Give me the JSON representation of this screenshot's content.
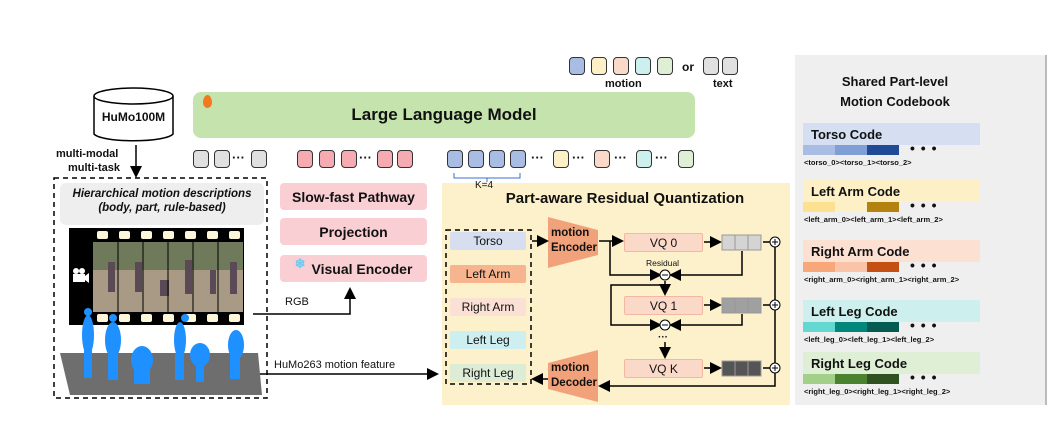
{
  "database": {
    "label": "HuMo100M",
    "arrow_label_1": "multi-modal",
    "arrow_label_2": "multi-task"
  },
  "data_panel": {
    "description_line_1": "Hierarchical motion descriptions",
    "description_line_2": "(body, part, rule-based)"
  },
  "llm": {
    "label": "Large Language Model",
    "trainable_icon": "flame-icon"
  },
  "legend": {
    "or_label": "or",
    "motion_label": "motion",
    "text_label": "text"
  },
  "token_row": {
    "k_label": "K=4",
    "dots": "···"
  },
  "visual_branch": {
    "slow_fast": "Slow-fast Pathway",
    "projection": "Projection",
    "visual_encoder": "Visual Encoder",
    "frozen_icon": "snowflake-icon",
    "rgb_label": "RGB",
    "motion_feature_label": "HuMo263 motion feature"
  },
  "prq": {
    "title": "Part-aware Residual Quantization",
    "parts": [
      "Torso",
      "Left Arm",
      "Right Arm",
      "Left Leg",
      "Right Leg"
    ],
    "encoder": [
      "motion",
      "Encoder"
    ],
    "decoder": [
      "motion",
      "Decoder"
    ],
    "vq": [
      "VQ 0",
      "VQ 1",
      "VQ K"
    ],
    "residual_label": "Residual",
    "vdots": "···"
  },
  "codebook": {
    "title_line_1": "Shared Part-level",
    "title_line_2": "Motion Codebook",
    "entries": [
      {
        "title": "Torso Code",
        "tokens": "<torso_0><torso_1><torso_2>",
        "bg": "#d5dff1",
        "colors": [
          "#a9bde4",
          "#7f9fd6",
          "#214a96"
        ]
      },
      {
        "title": "Left Arm Code",
        "tokens": "<left_arm_0><left_arm_1><left_arm_2>",
        "bg": "#fdf0c6",
        "colors": [
          "#fde090",
          "#fdf0c6",
          "#b4820f"
        ]
      },
      {
        "title": "Right Arm Code",
        "tokens": "<right_arm_0><right_arm_1><right_arm_2>",
        "bg": "#fce0d2",
        "colors": [
          "#f7a77a",
          "#f9c4a7",
          "#c45113"
        ]
      },
      {
        "title": "Left Leg Code",
        "tokens": "<left_leg_0><left_leg_1><left_leg_2>",
        "bg": "#cdf0ef",
        "colors": [
          "#63d8d0",
          "#00867a",
          "#055a52"
        ]
      },
      {
        "title": "Right Leg Code",
        "tokens": "<right_leg_0><right_leg_1><right_leg_2>",
        "bg": "#dfefd5",
        "colors": [
          "#a3d089",
          "#4a8230",
          "#2f5220"
        ]
      }
    ],
    "dots": "• • •"
  }
}
